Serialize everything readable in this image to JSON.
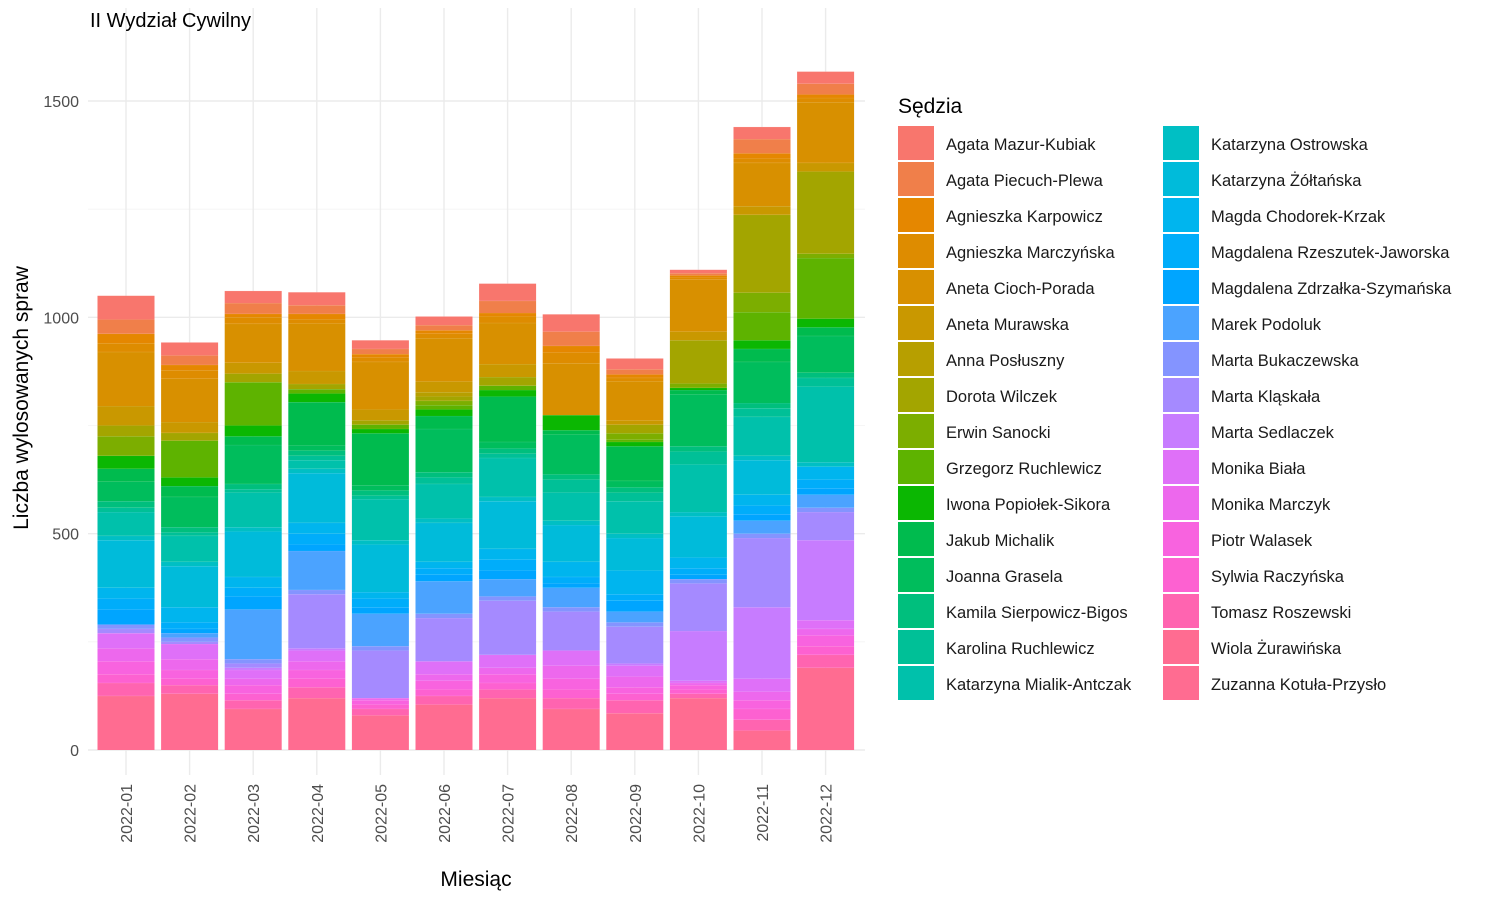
{
  "chart_data": {
    "type": "bar",
    "stacked": true,
    "title": "II Wydział Cywilny",
    "xlabel": "Miesiąc",
    "ylabel": "Liczba wylosowanych spraw",
    "legend_title": "Sędzia",
    "legend_position": "right",
    "grid": true,
    "ylim": [
      0,
      1700
    ],
    "yticks": [
      0,
      500,
      1000,
      1500
    ],
    "categories": [
      "2022-01",
      "2022-02",
      "2022-03",
      "2022-04",
      "2022-05",
      "2022-06",
      "2022-07",
      "2022-08",
      "2022-09",
      "2022-10",
      "2022-11",
      "2022-12"
    ],
    "series": [
      {
        "name": "Agata Mazur-Kubiak",
        "color": "#F8766D",
        "values": [
          55,
          30,
          28,
          30,
          20,
          20,
          40,
          40,
          25,
          8,
          28,
          28
        ]
      },
      {
        "name": "Agata Piecuch-Plewa",
        "color": "#F07F4A",
        "values": [
          33,
          22,
          25,
          20,
          12,
          12,
          28,
          33,
          12,
          5,
          33,
          25
        ]
      },
      {
        "name": "Agnieszka Karpowicz",
        "color": "#E58700",
        "values": [
          22,
          12,
          8,
          12,
          8,
          8,
          8,
          15,
          8,
          5,
          12,
          8
        ]
      },
      {
        "name": "Agnieszka Marczyńska",
        "color": "#DE8C00",
        "values": [
          20,
          20,
          15,
          10,
          10,
          10,
          15,
          25,
          8,
          5,
          10,
          10
        ]
      },
      {
        "name": "Aneta Cioch-Porada",
        "color": "#D89000",
        "values": [
          125,
          100,
          90,
          110,
          110,
          100,
          95,
          120,
          90,
          120,
          100,
          140
        ]
      },
      {
        "name": "Aneta Murawska",
        "color": "#C99800",
        "values": [
          45,
          25,
          25,
          30,
          25,
          25,
          30,
          0,
          10,
          20,
          20,
          20
        ]
      },
      {
        "name": "Anna Posłuszny",
        "color": "#B79F00",
        "values": [
          0,
          0,
          0,
          0,
          0,
          10,
          0,
          0,
          0,
          0,
          0,
          0
        ]
      },
      {
        "name": "Dorota Wilczek",
        "color": "#A3A500",
        "values": [
          25,
          18,
          20,
          12,
          10,
          10,
          20,
          0,
          20,
          100,
          180,
          190
        ]
      },
      {
        "name": "Erwin Sanocki",
        "color": "#7CAE00",
        "values": [
          45,
          0,
          0,
          0,
          0,
          10,
          0,
          0,
          15,
          10,
          45,
          10
        ]
      },
      {
        "name": "Grzegorz Ruchlewicz",
        "color": "#5EB300",
        "values": [
          0,
          85,
          100,
          10,
          10,
          10,
          10,
          0,
          5,
          0,
          65,
          140
        ]
      },
      {
        "name": "Iwona Popiołek-Sikora",
        "color": "#0BB702",
        "values": [
          30,
          20,
          25,
          20,
          10,
          15,
          15,
          35,
          10,
          5,
          20,
          20
        ]
      },
      {
        "name": "Jakub Michalik",
        "color": "#00BB4E",
        "values": [
          30,
          25,
          20,
          100,
          120,
          30,
          105,
          10,
          80,
          10,
          30,
          20
        ]
      },
      {
        "name": "Joanna Grasela",
        "color": "#00BD5C",
        "values": [
          45,
          70,
          90,
          12,
          12,
          100,
          15,
          92,
          15,
          120,
          95,
          85
        ]
      },
      {
        "name": "Kamila Sierpowicz-Bigos",
        "color": "#00BF7D",
        "values": [
          15,
          12,
          12,
          12,
          12,
          12,
          12,
          12,
          12,
          12,
          12,
          12
        ]
      },
      {
        "name": "Karolina Ruchlewicz",
        "color": "#00C097",
        "values": [
          10,
          8,
          8,
          10,
          8,
          15,
          10,
          30,
          20,
          30,
          20,
          20
        ]
      },
      {
        "name": "Katarzyna Mialik-Antczak",
        "color": "#00C1AB",
        "values": [
          55,
          60,
          80,
          20,
          95,
          80,
          90,
          65,
          75,
          110,
          90,
          175
        ]
      },
      {
        "name": "Katarzyna Ostrowska",
        "color": "#00BFC4",
        "values": [
          10,
          10,
          10,
          10,
          10,
          10,
          10,
          10,
          10,
          10,
          10,
          10
        ]
      },
      {
        "name": "Katarzyna Żółtańska",
        "color": "#00BBDA",
        "values": [
          110,
          95,
          105,
          115,
          110,
          90,
          110,
          85,
          75,
          95,
          80,
          0
        ]
      },
      {
        "name": "Magda Chodorek-Krzak",
        "color": "#00B5EE",
        "values": [
          25,
          35,
          25,
          25,
          15,
          15,
          25,
          35,
          55,
          25,
          25,
          30
        ]
      },
      {
        "name": "Magdalena Rzeszutek-Jaworska",
        "color": "#00ADFA",
        "values": [
          25,
          15,
          20,
          25,
          20,
          15,
          25,
          15,
          15,
          15,
          20,
          20
        ]
      },
      {
        "name": "Magdalena Zdrzałka-Szymańska",
        "color": "#00A5FF",
        "values": [
          35,
          10,
          30,
          15,
          15,
          15,
          20,
          10,
          25,
          10,
          15,
          15
        ]
      },
      {
        "name": "Marek Podoluk",
        "color": "#4BA3FF",
        "values": [
          0,
          10,
          115,
          90,
          75,
          75,
          40,
          45,
          25,
          0,
          30,
          30
        ]
      },
      {
        "name": "Marta Bukaczewska",
        "color": "#8494FF",
        "values": [
          10,
          10,
          10,
          10,
          10,
          10,
          10,
          10,
          10,
          10,
          10,
          10
        ]
      },
      {
        "name": "Marta Kląskała",
        "color": "#A58AFF",
        "values": [
          10,
          5,
          10,
          125,
          110,
          100,
          125,
          90,
          85,
          110,
          160,
          65
        ]
      },
      {
        "name": "Marta Sedlaczek",
        "color": "#C77CFF",
        "values": [
          0,
          0,
          5,
          5,
          0,
          0,
          0,
          0,
          5,
          115,
          165,
          185
        ]
      },
      {
        "name": "Monika Biała",
        "color": "#DF70F8",
        "values": [
          35,
          35,
          20,
          25,
          0,
          30,
          30,
          35,
          25,
          5,
          30,
          20
        ]
      },
      {
        "name": "Monika Marczyk",
        "color": "#ED68ED",
        "values": [
          30,
          25,
          15,
          20,
          5,
          15,
          15,
          30,
          25,
          5,
          20,
          15
        ]
      },
      {
        "name": "Piotr Walasek",
        "color": "#F863DF",
        "values": [
          30,
          20,
          20,
          20,
          10,
          20,
          20,
          25,
          15,
          10,
          20,
          25
        ]
      },
      {
        "name": "Sylwia Raczyńska",
        "color": "#FD61D1",
        "values": [
          20,
          15,
          15,
          20,
          10,
          15,
          15,
          20,
          15,
          10,
          25,
          20
        ]
      },
      {
        "name": "Tomasz Roszewski",
        "color": "#FF64B0",
        "values": [
          30,
          20,
          20,
          25,
          15,
          20,
          20,
          25,
          30,
          10,
          25,
          30
        ]
      },
      {
        "name": "Wiola Żurawińska",
        "color": "#FF6C91",
        "values": [
          125,
          130,
          95,
          120,
          80,
          105,
          120,
          95,
          85,
          120,
          45,
          190
        ]
      },
      {
        "name": "Zuzanna Kotuła-Przysło",
        "color": "#FF6C91",
        "values": [
          0,
          0,
          0,
          0,
          0,
          0,
          0,
          0,
          0,
          0,
          0,
          0
        ]
      }
    ]
  }
}
